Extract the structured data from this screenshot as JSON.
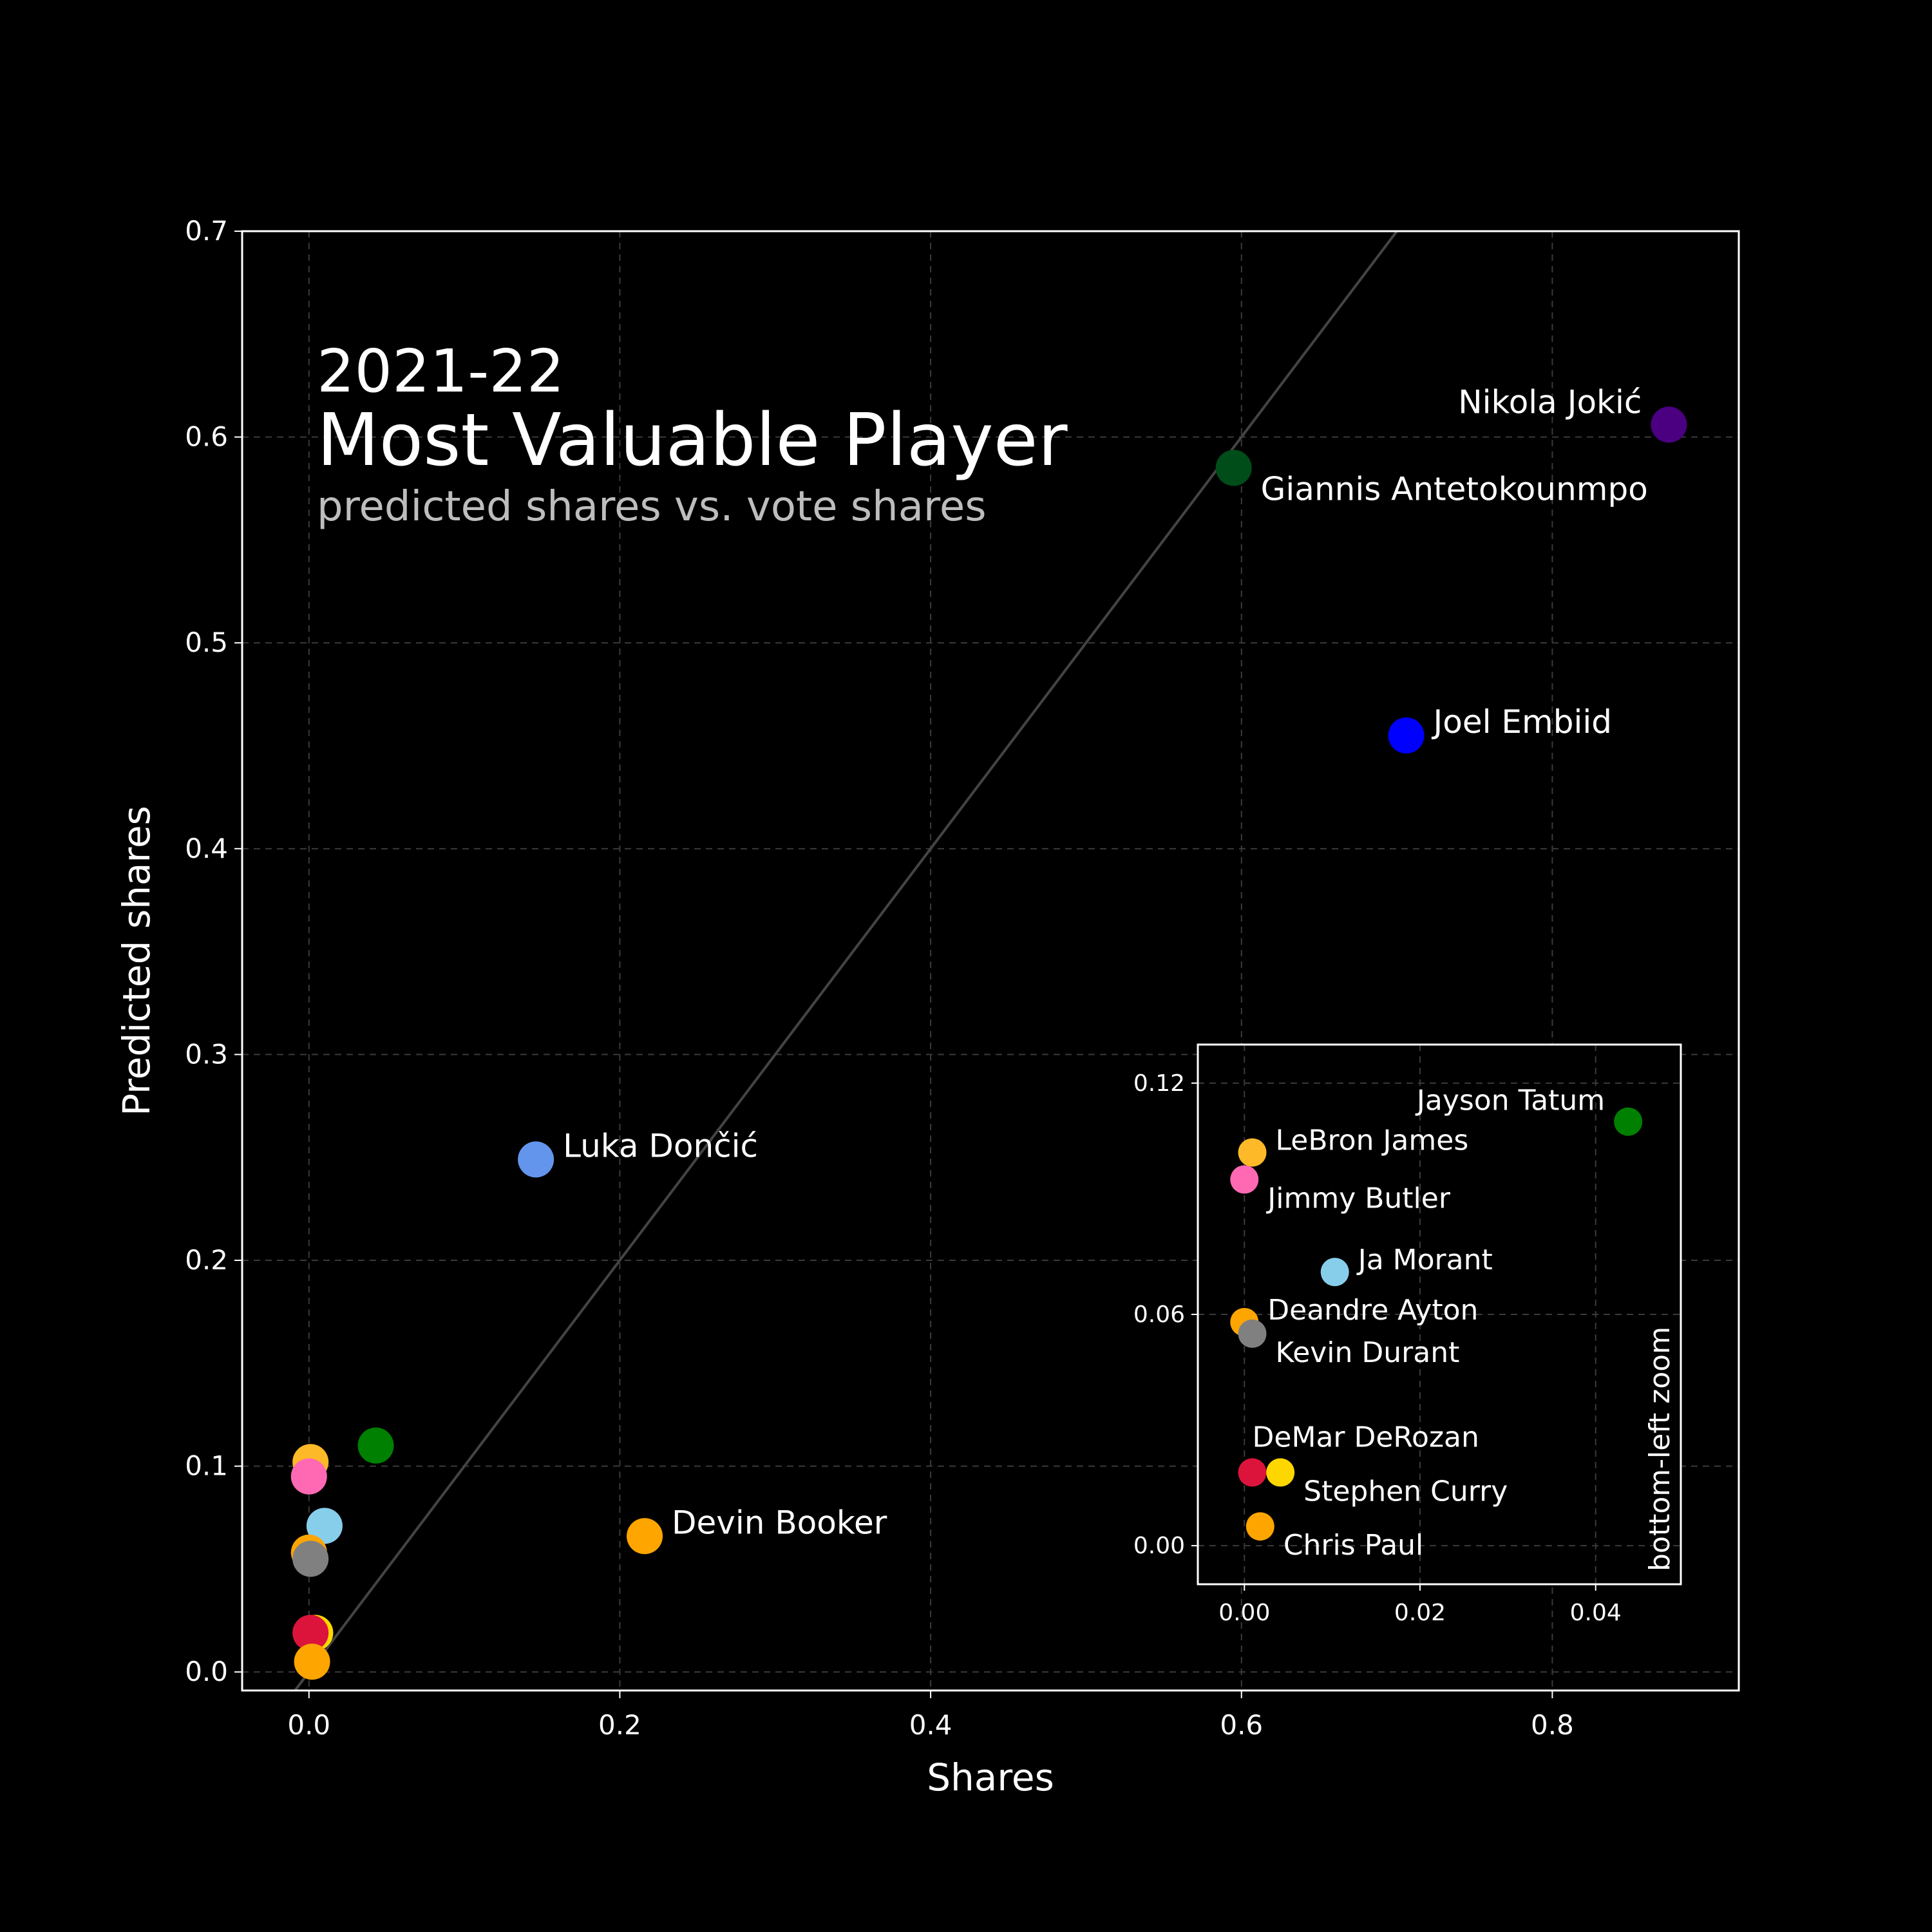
{
  "chart_data": [
    {
      "type": "scatter",
      "title": "2021-22",
      "title_line2": "Most Valuable Player",
      "subtitle": "predicted shares vs. vote shares",
      "xlabel": "Shares",
      "ylabel": "Predicted shares",
      "xlim": [
        -0.043,
        0.92
      ],
      "ylim": [
        -0.009,
        0.7
      ],
      "xticks": [
        0.0,
        0.2,
        0.4,
        0.6,
        0.8
      ],
      "xtick_labels": [
        "0.0",
        "0.2",
        "0.4",
        "0.6",
        "0.8"
      ],
      "yticks": [
        0.0,
        0.1,
        0.2,
        0.3,
        0.4,
        0.5,
        0.6,
        0.7
      ],
      "ytick_labels": [
        "0.0",
        "0.1",
        "0.2",
        "0.3",
        "0.4",
        "0.5",
        "0.6",
        "0.7"
      ],
      "grid": true,
      "reference_line": "y = x",
      "points": [
        {
          "name": "Nikola Jokić",
          "x": 0.875,
          "y": 0.606,
          "color": "#4b0082",
          "label": "Nikola Jokić",
          "label_side": "left"
        },
        {
          "name": "Giannis Antetokounmpo",
          "x": 0.595,
          "y": 0.585,
          "color": "#004d1a",
          "label": "Giannis Antetokounmpo",
          "label_side": "right-below"
        },
        {
          "name": "Joel Embiid",
          "x": 0.706,
          "y": 0.455,
          "color": "#0000ff",
          "label": "Joel Embiid",
          "label_side": "right"
        },
        {
          "name": "Luka Dončić",
          "x": 0.146,
          "y": 0.249,
          "color": "#6495ed",
          "label": "Luka Dončić",
          "label_side": "right"
        },
        {
          "name": "Devin Booker",
          "x": 0.216,
          "y": 0.066,
          "color": "#ffa500",
          "label": "Devin Booker",
          "label_side": "right"
        },
        {
          "name": "Jayson Tatum",
          "x": 0.043,
          "y": 0.11,
          "color": "#008000",
          "label": "",
          "label_side": ""
        },
        {
          "name": "LeBron James",
          "x": 0.001,
          "y": 0.102,
          "color": "#fdb927",
          "label": "",
          "label_side": ""
        },
        {
          "name": "Jimmy Butler",
          "x": 0.0,
          "y": 0.095,
          "color": "#ff69b4",
          "label": "",
          "label_side": ""
        },
        {
          "name": "Ja Morant",
          "x": 0.01,
          "y": 0.071,
          "color": "#87ceeb",
          "label": "",
          "label_side": ""
        },
        {
          "name": "Deandre Ayton",
          "x": 0.0,
          "y": 0.058,
          "color": "#ffa500",
          "label": "",
          "label_side": ""
        },
        {
          "name": "Kevin Durant",
          "x": 0.001,
          "y": 0.055,
          "color": "#808080",
          "label": "",
          "label_side": ""
        },
        {
          "name": "Stephen Curry",
          "x": 0.004,
          "y": 0.019,
          "color": "#ffd700",
          "label": "",
          "label_side": ""
        },
        {
          "name": "DeMar DeRozan",
          "x": 0.001,
          "y": 0.019,
          "color": "#dc143c",
          "label": "",
          "label_side": ""
        },
        {
          "name": "Chris Paul",
          "x": 0.002,
          "y": 0.005,
          "color": "#ffa500",
          "label": "",
          "label_side": ""
        }
      ]
    },
    {
      "type": "scatter",
      "caption": "bottom-left zoom",
      "xlim": [
        -0.0053,
        0.0497
      ],
      "ylim": [
        -0.01,
        0.13
      ],
      "xticks": [
        0.0,
        0.02,
        0.04
      ],
      "xtick_labels": [
        "0.00",
        "0.02",
        "0.04"
      ],
      "yticks": [
        0.0,
        0.06,
        0.12
      ],
      "ytick_labels": [
        "0.00",
        "0.06",
        "0.12"
      ],
      "grid": true,
      "points": [
        {
          "name": "Jayson Tatum",
          "x": 0.0437,
          "y": 0.11,
          "color": "#008000",
          "label": "Jayson Tatum",
          "label_side": "left"
        },
        {
          "name": "LeBron James",
          "x": 0.0009,
          "y": 0.102,
          "color": "#fdb927",
          "label": "LeBron James",
          "label_side": "right"
        },
        {
          "name": "Jimmy Butler",
          "x": 0.0,
          "y": 0.095,
          "color": "#ff69b4",
          "label": "Jimmy Butler",
          "label_side": "right-below"
        },
        {
          "name": "Ja Morant",
          "x": 0.0103,
          "y": 0.071,
          "color": "#87ceeb",
          "label": "Ja Morant",
          "label_side": "right"
        },
        {
          "name": "Deandre Ayton",
          "x": 0.0,
          "y": 0.058,
          "color": "#ffa500",
          "label": "Deandre Ayton",
          "label_side": "right"
        },
        {
          "name": "Kevin Durant",
          "x": 0.0009,
          "y": 0.055,
          "color": "#808080",
          "label": "Kevin Durant",
          "label_side": "right-below"
        },
        {
          "name": "DeMar DeRozan",
          "x": 0.0009,
          "y": 0.019,
          "color": "#dc143c",
          "label": "DeMar DeRozan",
          "label_side": "above"
        },
        {
          "name": "Stephen Curry",
          "x": 0.0041,
          "y": 0.019,
          "color": "#ffd700",
          "label": "Stephen Curry",
          "label_side": "right-below"
        },
        {
          "name": "Chris Paul",
          "x": 0.0018,
          "y": 0.005,
          "color": "#ffa500",
          "label": "Chris Paul",
          "label_side": "right-below"
        }
      ]
    }
  ]
}
